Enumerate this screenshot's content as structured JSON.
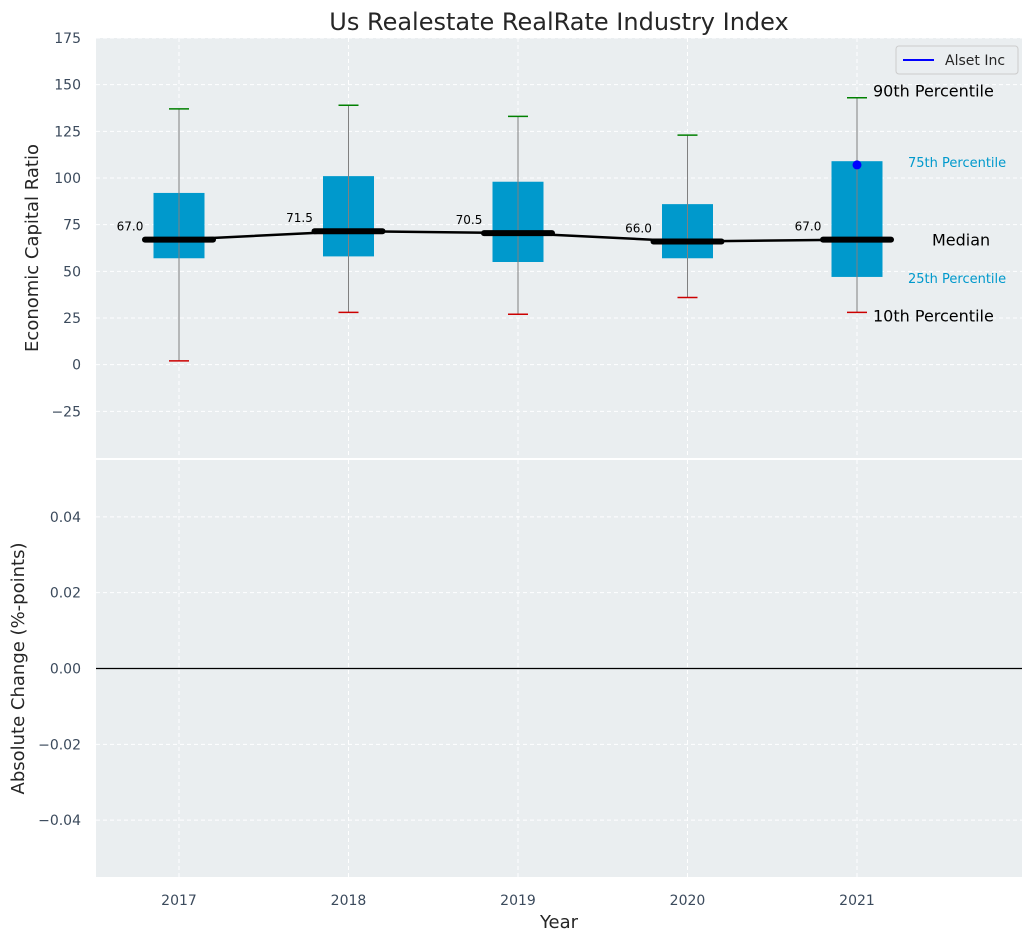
{
  "chart_data": [
    {
      "type": "box",
      "title": "Us Realestate RealRate Industry Index",
      "xlabel": "",
      "ylabel": "Economic Capital Ratio",
      "ylim": [
        -50,
        175
      ],
      "yticks": [
        -25,
        0,
        25,
        50,
        75,
        100,
        125,
        150,
        175
      ],
      "ytick_labels": [
        "−25",
        "0",
        "25",
        "50",
        "75",
        "100",
        "125",
        "150",
        "175"
      ],
      "grid": true,
      "categories": [
        "2017",
        "2018",
        "2019",
        "2020",
        "2021"
      ],
      "p10": [
        2,
        28,
        27,
        36,
        28
      ],
      "p25": [
        57,
        58,
        55,
        57,
        47
      ],
      "median": [
        67.0,
        71.5,
        70.5,
        66.0,
        67.0
      ],
      "median_labels": [
        "67.0",
        "71.5",
        "70.5",
        "66.0",
        "67.0"
      ],
      "p75": [
        92,
        101,
        98,
        86,
        109
      ],
      "p90": [
        137,
        139,
        133,
        123,
        143
      ],
      "company": {
        "name": "Alset Inc",
        "year": "2021",
        "value": 107
      },
      "annotations": {
        "p90": "90th Percentile",
        "p75": "75th Percentile",
        "median": "Median",
        "p25": "25th Percentile",
        "p10": "10th Percentile"
      },
      "legend": {
        "position": "top-right",
        "entries": [
          "Alset Inc"
        ]
      }
    },
    {
      "type": "line",
      "xlabel": "Year",
      "ylabel": "Absolute Change (%-points)",
      "ylim": [
        -0.055,
        0.055
      ],
      "yticks": [
        -0.04,
        -0.02,
        0.0,
        0.02,
        0.04
      ],
      "ytick_labels": [
        "−0.04",
        "−0.02",
        "0.00",
        "0.02",
        "0.04"
      ],
      "categories": [
        "2017",
        "2018",
        "2019",
        "2020",
        "2021"
      ],
      "series": [],
      "reference_line": 0,
      "grid": true
    }
  ],
  "colors": {
    "box": "#0099cc",
    "median": "#000000",
    "p90_cap": "#008000",
    "p10_cap": "#cc0000",
    "whisker": "#808080",
    "company": "#0000ff",
    "background": "#eaeef0",
    "grid": "#ffffff"
  }
}
